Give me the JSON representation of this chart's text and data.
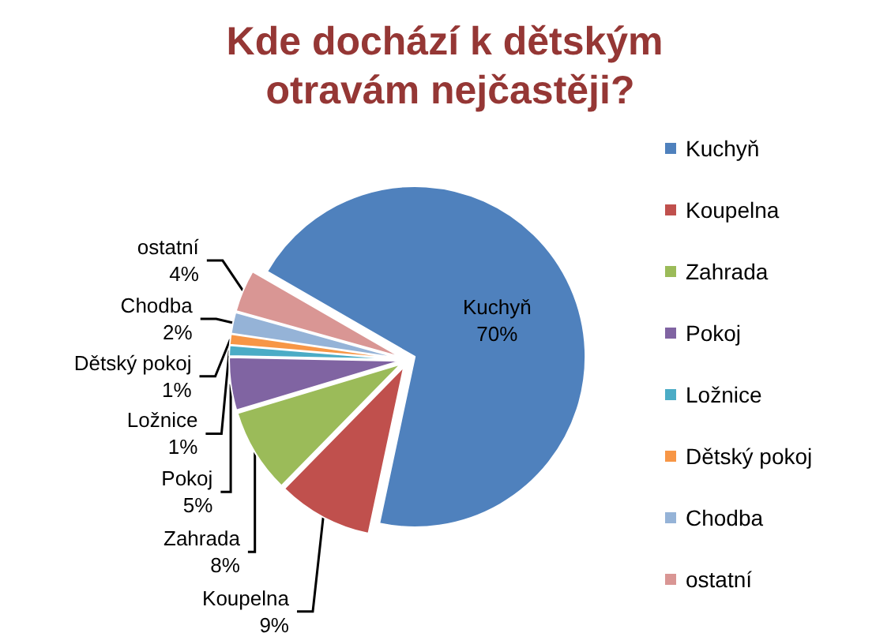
{
  "chart_data": {
    "type": "pie",
    "title": "Kde dochází k dětským otravám nejčastěji?",
    "categories": [
      "Kuchyň",
      "Koupelna",
      "Zahrada",
      "Pokoj",
      "Ložnice",
      "Dětský pokoj",
      "Chodba",
      "ostatní"
    ],
    "values": [
      70,
      9,
      8,
      5,
      1,
      1,
      2,
      4
    ],
    "value_labels": [
      "70%",
      "9%",
      "8%",
      "5%",
      "1%",
      "1%",
      "2%",
      "4%"
    ],
    "colors": [
      "#4f81bd",
      "#c0504d",
      "#9bbb59",
      "#8064a2",
      "#4bacc6",
      "#f79646",
      "#95b3d7",
      "#d99694"
    ],
    "legend": "right"
  }
}
